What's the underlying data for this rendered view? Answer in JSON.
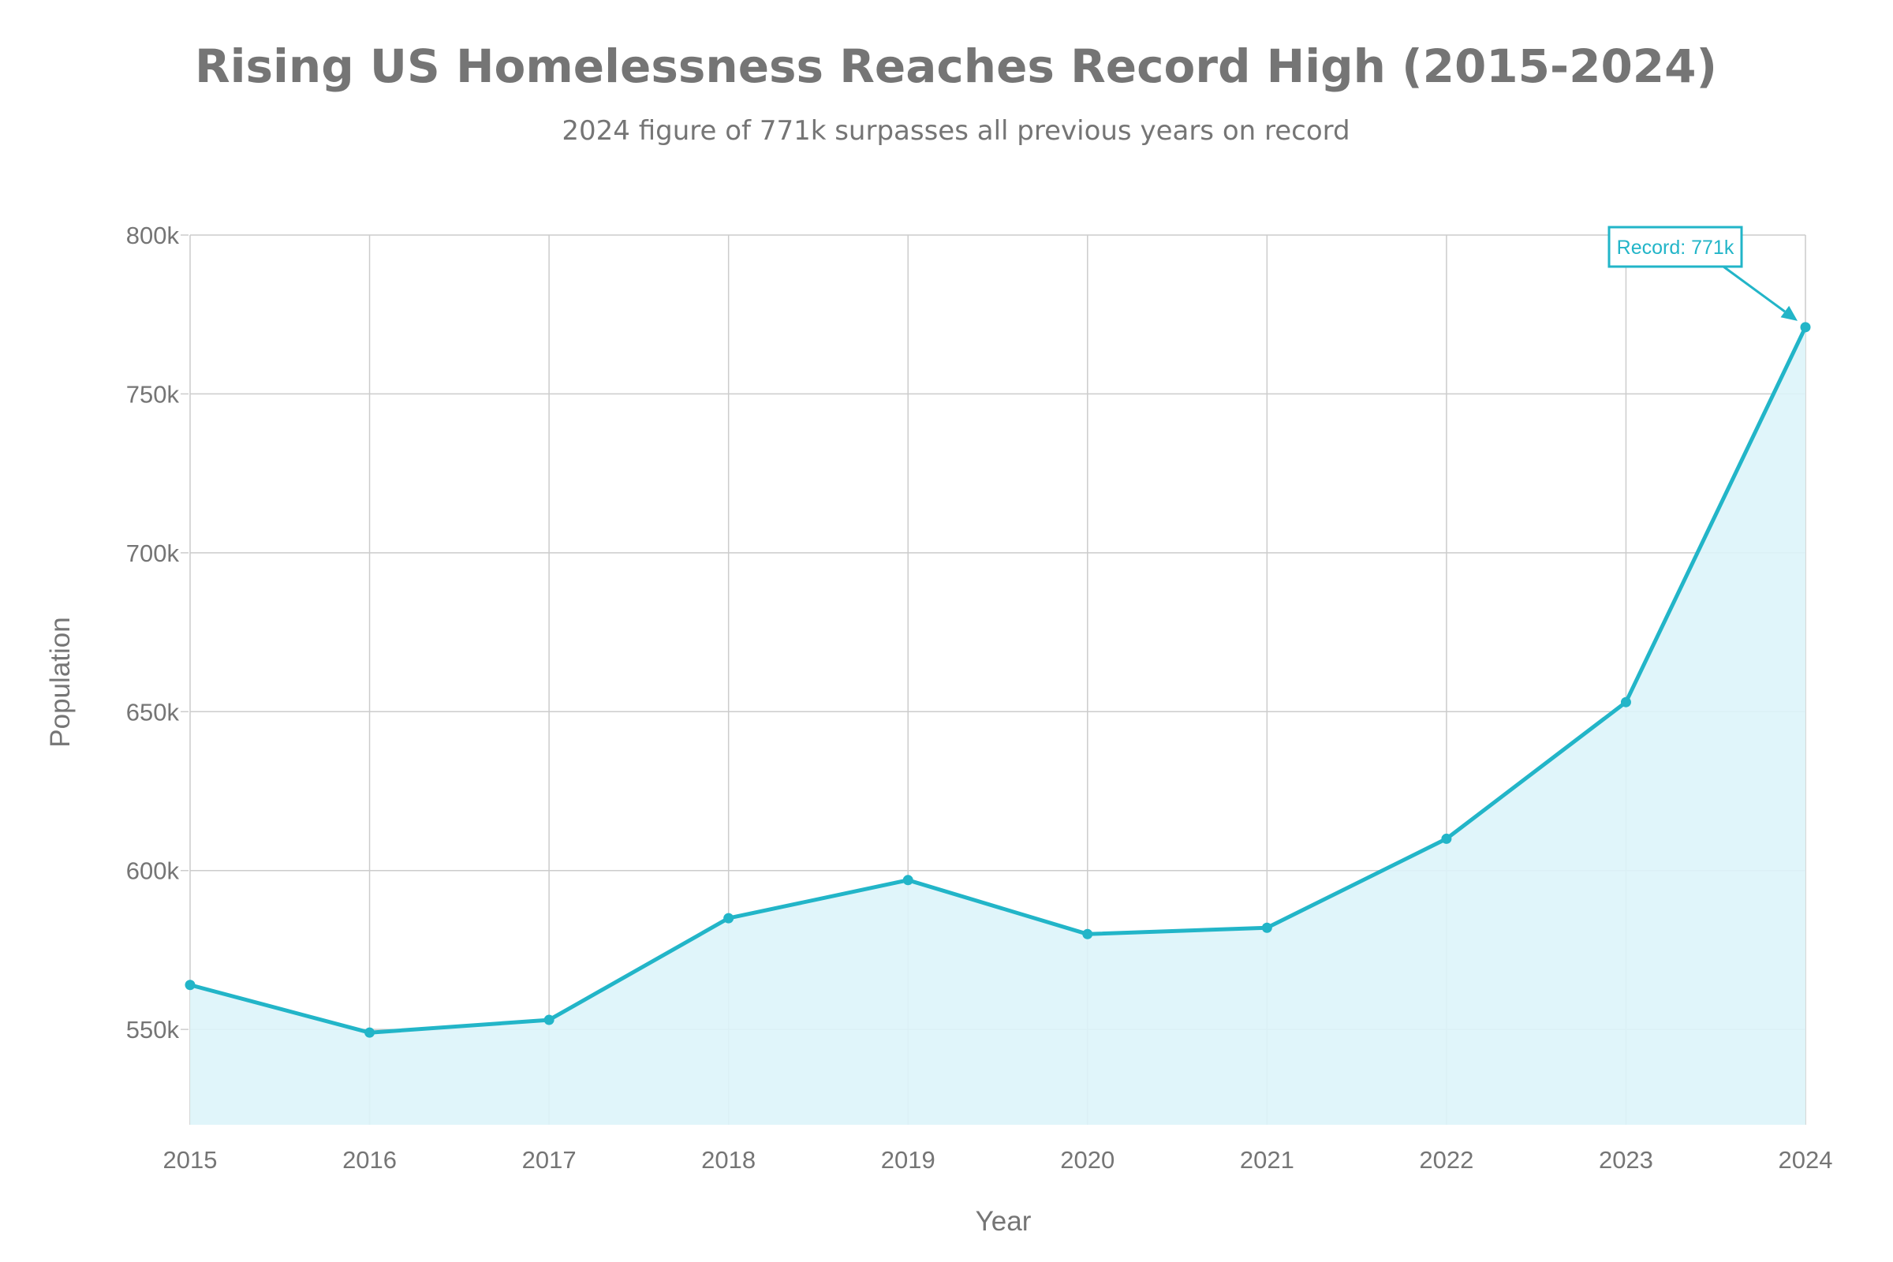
{
  "colors": {
    "accent": "#22b5c8",
    "fill": "#ddf4f9",
    "text": "#757575",
    "grid": "#cccccc"
  },
  "chart_data": {
    "type": "area",
    "title": "Rising US Homelessness Reaches Record High (2015-2024)",
    "subtitle": "2024 figure of 771k surpasses all previous years on record",
    "xlabel": "Year",
    "ylabel": "Population",
    "x": [
      2015,
      2016,
      2017,
      2018,
      2019,
      2020,
      2021,
      2022,
      2023,
      2024
    ],
    "x_tick_labels": [
      "2015",
      "2016",
      "2017",
      "2018",
      "2019",
      "2020",
      "2021",
      "2022",
      "2023",
      "2024"
    ],
    "series": [
      {
        "values": [
          564000,
          549000,
          553000,
          585000,
          597000,
          580000,
          582000,
          610000,
          653000,
          771000
        ]
      }
    ],
    "ylim": [
      520000,
      800000
    ],
    "y_ticks": [
      550000,
      600000,
      650000,
      700000,
      750000,
      800000
    ],
    "y_tick_labels": [
      "550k",
      "600k",
      "650k",
      "700k",
      "750k",
      "800k"
    ],
    "grid": true,
    "legend": "none",
    "annotation": {
      "text": "Record: 771k",
      "x": 2024,
      "y": 771000
    }
  }
}
